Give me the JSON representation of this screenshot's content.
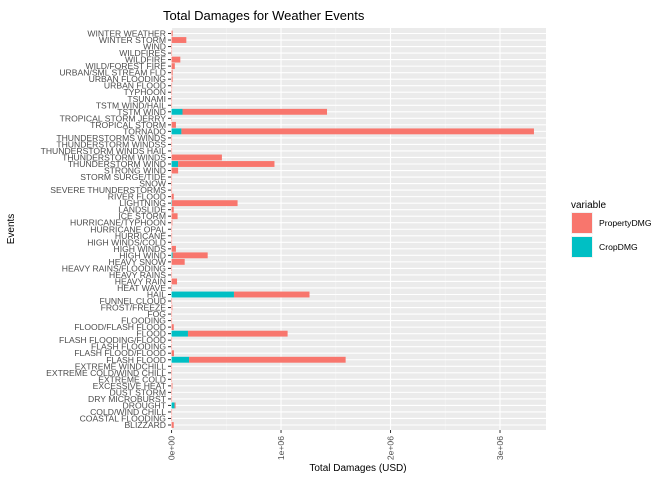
{
  "chart_data": {
    "type": "bar",
    "orientation": "horizontal",
    "stacked": true,
    "title": "Total Damages for Weather Events",
    "xlabel": "Total Damages (USD)",
    "ylabel": "Events",
    "xlim": [
      -5000,
      3420000
    ],
    "x_ticks": [
      0,
      1000000,
      2000000,
      3000000
    ],
    "x_tick_labels": [
      "0e+00",
      "1e+06",
      "2e+06",
      "3e+06"
    ],
    "grid": true,
    "legend": {
      "title": "variable",
      "position": "right"
    },
    "categories": [
      "BLIZZARD",
      "COASTAL FLOODING",
      "COLD/WIND CHILL",
      "DROUGHT",
      "DRY MICROBURST",
      "DUST STORM",
      "EXCESSIVE HEAT",
      "EXTREME COLD",
      "EXTREME COLD/WIND CHILL",
      "EXTREME WINDCHILL",
      "FLASH FLOOD",
      "FLASH FLOOD/FLOOD",
      "FLASH FLOODING",
      "FLASH FLOODING/FLOOD",
      "FLOOD",
      "FLOOD/FLASH FLOOD",
      "FLOODING",
      "FOG",
      "FROST/FREEZE",
      "FUNNEL CLOUD",
      "HAIL",
      "HEAT WAVE",
      "HEAVY RAIN",
      "HEAVY RAINS",
      "HEAVY RAINS/FLOODING",
      "HEAVY SNOW",
      "HIGH WIND",
      "HIGH WINDS",
      "HIGH WINDS/COLD",
      "HURRICANE",
      "HURRICANE OPAL",
      "HURRICANE/TYPHOON",
      "ICE STORM",
      "LANDSLIDE",
      "LIGHTNING",
      "RIVER FLOOD",
      "SEVERE THUNDERSTORMS",
      "SNOW",
      "STORM SURGE/TIDE",
      "STRONG WIND",
      "THUNDERSTORM WIND",
      "THUNDERSTORM WINDS",
      "THUNDERSTORM WINDS HAIL",
      "THUNDERSTORM WINDSS",
      "THUNDERSTORMS WINDS",
      "TORNADO",
      "TROPICAL STORM",
      "TROPICAL STORM JERRY",
      "TSTM WIND",
      "TSTM WIND/HAIL",
      "TSUNAMI",
      "TYPHOON",
      "URBAN FLOOD",
      "URBAN FLOODING",
      "URBAN/SML STREAM FLD",
      "WILD/FOREST FIRE",
      "WILDFIRE",
      "WILDFIRES",
      "WIND",
      "WINTER STORM",
      "WINTER WEATHER"
    ],
    "series": [
      {
        "name": "PropertyDMG",
        "color": "#F8766D",
        "values": [
          20000,
          2000,
          4000,
          9000,
          2000,
          4000,
          8000,
          2000,
          3000,
          1000,
          1430000,
          22000,
          3000,
          3000,
          910000,
          20000,
          2000,
          4000,
          7000,
          2000,
          690000,
          2000,
          50000,
          2000,
          1000,
          120000,
          320000,
          40000,
          3000,
          5000,
          2000,
          7000,
          55000,
          20000,
          600000,
          20000,
          2000,
          2000,
          4000,
          60000,
          880000,
          460000,
          3000,
          2000,
          2000,
          3220000,
          40000,
          3000,
          1320000,
          3000,
          3000,
          2000,
          5000,
          10000,
          10000,
          30000,
          80000,
          3000,
          2000,
          135000,
          10000
        ]
      },
      {
        "name": "CropDMG",
        "color": "#00BFC4",
        "values": [
          0,
          0,
          0,
          28000,
          0,
          0,
          0,
          0,
          0,
          0,
          160000,
          0,
          0,
          0,
          150000,
          0,
          0,
          0,
          0,
          0,
          570000,
          0,
          0,
          0,
          0,
          0,
          10000,
          0,
          0,
          0,
          0,
          0,
          0,
          0,
          3000,
          0,
          0,
          0,
          0,
          0,
          60000,
          0,
          0,
          0,
          0,
          90000,
          0,
          0,
          100000,
          0,
          0,
          0,
          0,
          0,
          0,
          0,
          0,
          0,
          0,
          0,
          0
        ]
      }
    ]
  }
}
